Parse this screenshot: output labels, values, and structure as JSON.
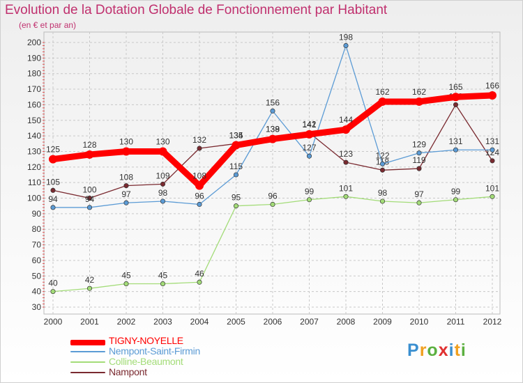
{
  "chart_data": {
    "type": "line",
    "title": "Evolution de la Dotation Globale de Fonctionnement par Habitant",
    "subtitle": "(en € et par an)",
    "categories": [
      "2000",
      "2001",
      "2002",
      "2003",
      "2004",
      "2005",
      "2006",
      "2007",
      "2008",
      "2009",
      "2010",
      "2011",
      "2012"
    ],
    "ylim": [
      30,
      200
    ],
    "yticks": [
      30,
      40,
      50,
      60,
      70,
      80,
      90,
      100,
      110,
      120,
      130,
      140,
      150,
      160,
      170,
      180,
      190,
      200
    ],
    "grid": true,
    "series": [
      {
        "name": "Nampont",
        "color": "#7a2a30",
        "values": [
          105,
          100,
          108,
          109,
          132,
          135,
          139,
          142,
          123,
          118,
          119,
          160,
          124
        ],
        "labels": [
          "105",
          "100",
          "108",
          "109",
          "132",
          "135",
          "139",
          "142",
          "123",
          "118",
          "119",
          "160",
          "124"
        ]
      },
      {
        "name": "Colline-Beaumont",
        "color": "#a3dc78",
        "values": [
          40,
          42,
          45,
          45,
          46,
          95,
          96,
          99,
          101,
          98,
          97,
          99,
          101
        ],
        "labels": [
          "40",
          "42",
          "45",
          "45",
          "46",
          "95",
          "96",
          "99",
          "101",
          "98",
          "97",
          "99",
          "101"
        ]
      },
      {
        "name": "Nempont-Saint-Firmin",
        "color": "#5b9bd5",
        "values": [
          94,
          94,
          97,
          98,
          96,
          115,
          156,
          127,
          198,
          122,
          129,
          131,
          131
        ],
        "labels": [
          "94",
          "94",
          "97",
          "98",
          "96",
          "115",
          "156",
          "127",
          "198",
          "122",
          "129",
          "131",
          "131"
        ]
      },
      {
        "name": "TIGNY-NOYELLE",
        "color": "#ff0000",
        "values": [
          125,
          128,
          130,
          130,
          108,
          134,
          138,
          141,
          144,
          162,
          162,
          165,
          166
        ],
        "labels": [
          "125",
          "128",
          "130",
          "130",
          "108",
          "134",
          "138",
          "141",
          "144",
          "162",
          "162",
          "165",
          "166"
        ]
      }
    ]
  },
  "legend": [
    {
      "label": "TIGNY-NOYELLE",
      "color": "#ff0000"
    },
    {
      "label": "Nempont-Saint-Firmin",
      "color": "#5b9bd5"
    },
    {
      "label": "Colline-Beaumont",
      "color": "#a3dc78"
    },
    {
      "label": "Nampont",
      "color": "#7a2a30"
    }
  ],
  "logo": {
    "letters": [
      "P",
      "r",
      "o",
      "x",
      "i",
      "t",
      "i"
    ],
    "colors": [
      "#3a8fd0",
      "#f0a020",
      "#5cb040",
      "#e03030",
      "#3a8fd0",
      "#f0a020",
      "#5cb040"
    ]
  }
}
